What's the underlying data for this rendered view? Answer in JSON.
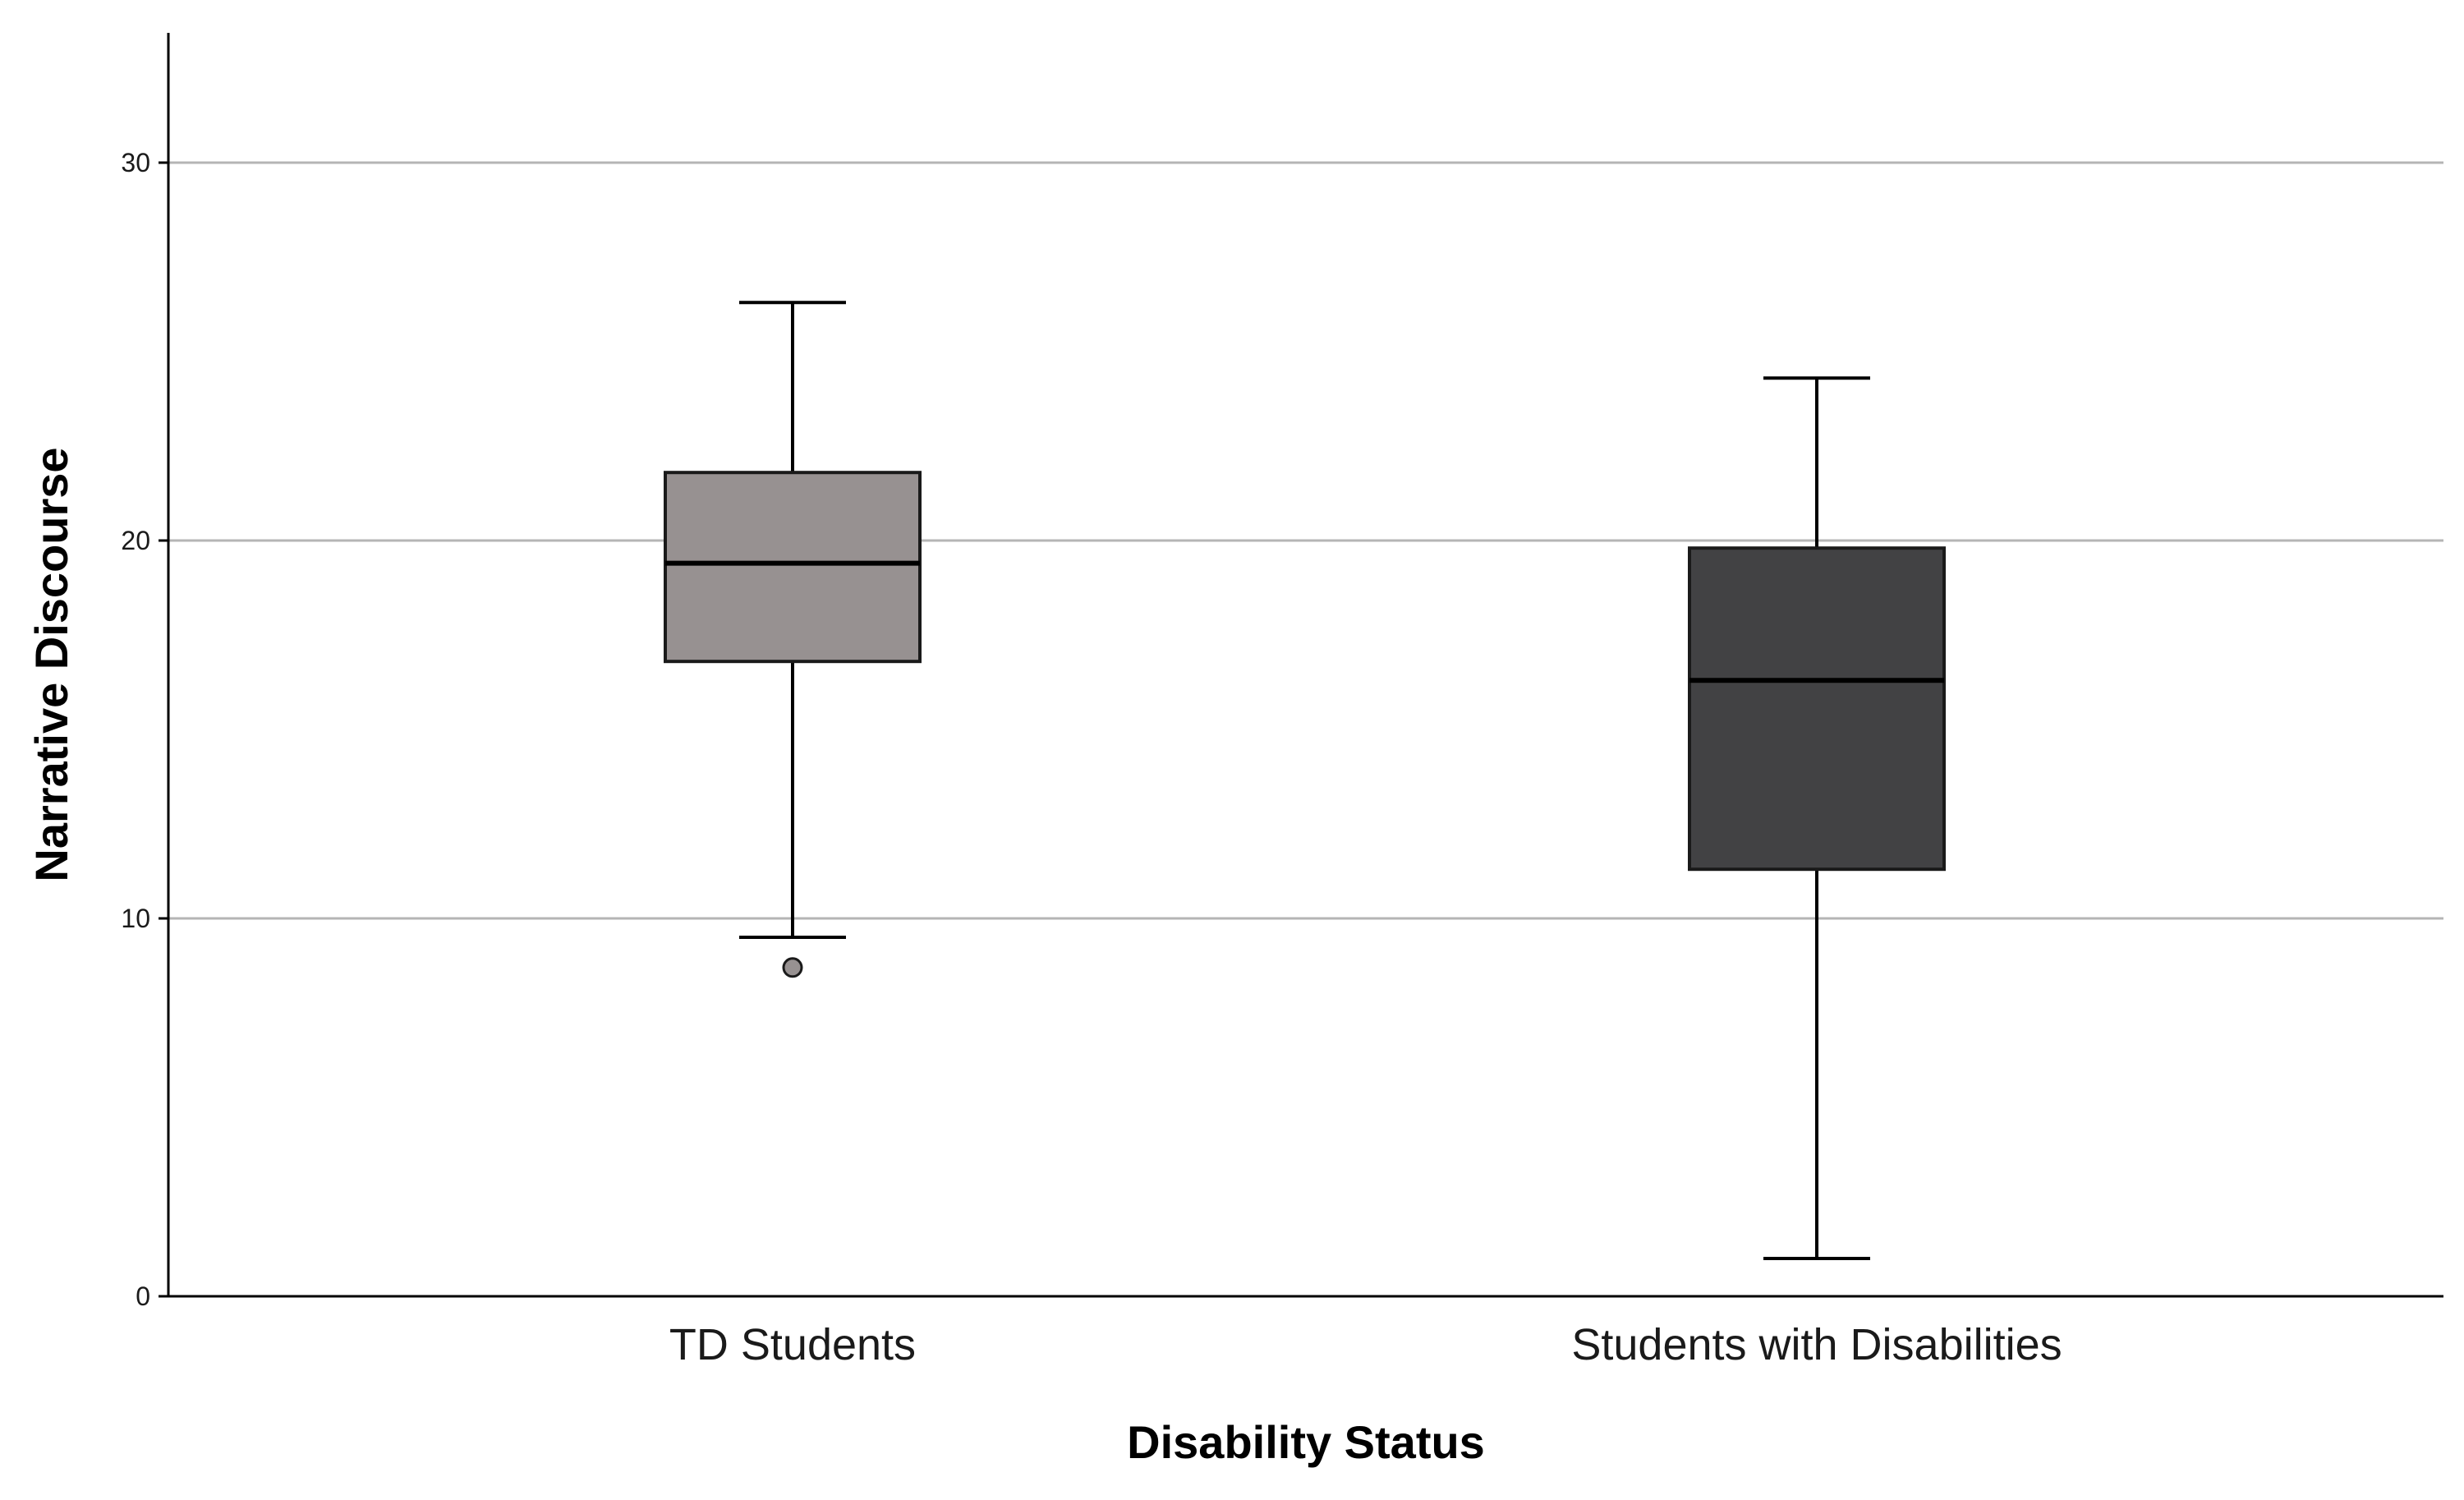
{
  "chart_data": {
    "type": "box",
    "xlabel": "Disability Status",
    "ylabel": "Narrative Discourse",
    "ylim": [
      0,
      33
    ],
    "yticks": [
      0,
      10,
      20,
      30
    ],
    "grid": true,
    "categories": [
      "TD Students",
      "Students with Disabilities"
    ],
    "boxes": [
      {
        "category": "TD Students",
        "whisker_low": 9.5,
        "q1": 16.8,
        "median": 19.4,
        "q3": 21.8,
        "whisker_high": 26.3,
        "outliers": [
          8.7
        ],
        "color": "#979191"
      },
      {
        "category": "Students with Disabilities",
        "whisker_low": 1.0,
        "q1": 11.3,
        "median": 16.3,
        "q3": 19.8,
        "whisker_high": 24.3,
        "outliers": [],
        "color": "#424244"
      }
    ]
  }
}
